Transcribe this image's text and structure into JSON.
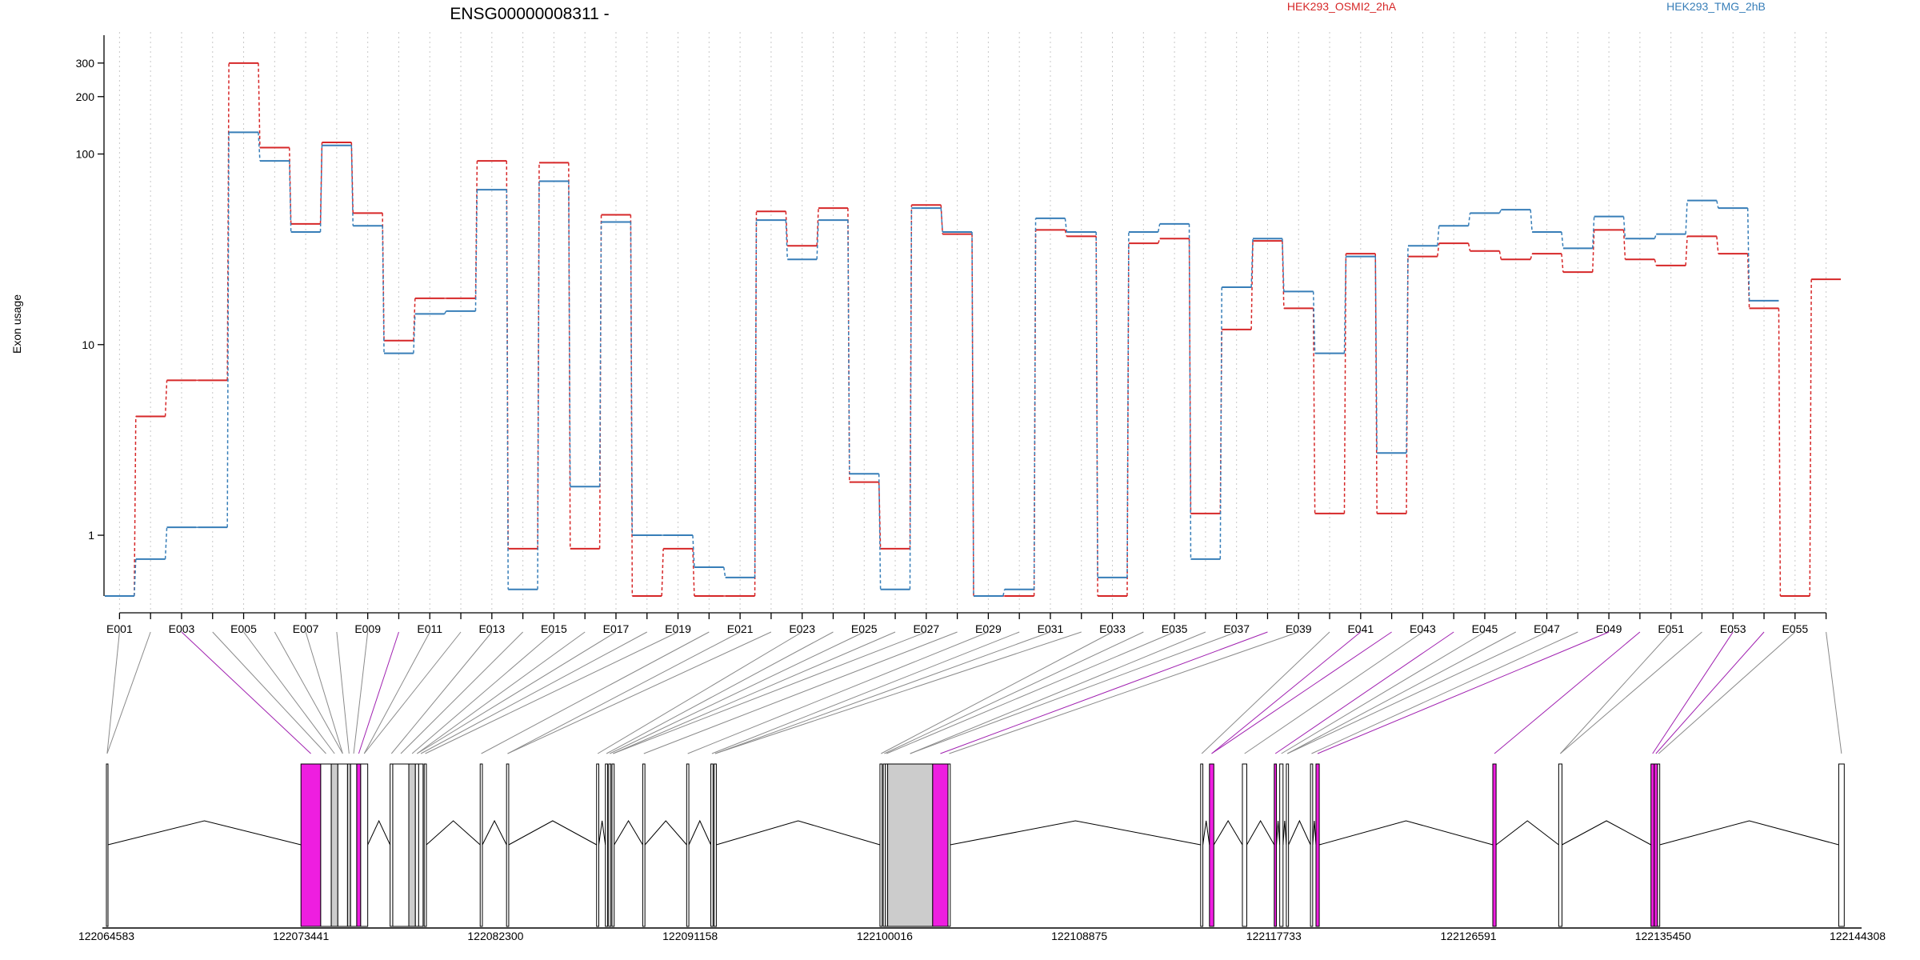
{
  "chart_data": {
    "type": "line",
    "title": "ENSG00000008311 -",
    "ylabel": "Exon usage",
    "yscale": "log",
    "ylim": [
      0.48,
      420
    ],
    "yticks": [
      1,
      10,
      100,
      200,
      300
    ],
    "grid": "vertical-dotted",
    "legend_position": "top-right",
    "series_colors": [
      "#d62728",
      "#377eb8"
    ],
    "exons": [
      "E001",
      "E002",
      "E003",
      "E004",
      "E005",
      "E006",
      "E007",
      "E008",
      "E009",
      "E010",
      "E011",
      "E012",
      "E013",
      "E014",
      "E015",
      "E016",
      "E017",
      "E018",
      "E019",
      "E020",
      "E021",
      "E022",
      "E023",
      "E024",
      "E025",
      "E026",
      "E027",
      "E028",
      "E029",
      "E030",
      "E031",
      "E032",
      "E033",
      "E034",
      "E035",
      "E036",
      "E037",
      "E038",
      "E039",
      "E040",
      "E041",
      "E042",
      "E043",
      "E044",
      "E045",
      "E046",
      "E047",
      "E048",
      "E049",
      "E050",
      "E051",
      "E052",
      "E053",
      "E054",
      "E055",
      "E056"
    ],
    "tick_labels": [
      "E001",
      "E003",
      "E005",
      "E007",
      "E009",
      "E011",
      "E013",
      "E015",
      "E017",
      "E019",
      "E021",
      "E023",
      "E025",
      "E027",
      "E029",
      "E031",
      "E033",
      "E035",
      "E037",
      "E039",
      "E041",
      "E043",
      "E045",
      "E047",
      "E049",
      "E051",
      "E053",
      "E055"
    ],
    "series": [
      {
        "name": "HEK293_OSMI2_2hA",
        "color": "#d62728",
        "values": [
          0.48,
          4.2,
          6.5,
          6.5,
          300,
          108,
          43,
          115,
          49,
          10.5,
          17.5,
          17.5,
          92,
          0.85,
          90,
          0.85,
          48,
          0.48,
          0.85,
          0.48,
          0.48,
          50,
          33,
          52,
          1.9,
          0.85,
          54,
          38,
          0.48,
          0.48,
          40,
          37,
          0.48,
          34,
          36,
          1.3,
          12,
          35,
          15.5,
          1.3,
          30,
          1.3,
          29,
          34,
          31,
          28,
          30,
          24,
          40,
          28,
          26,
          37,
          30,
          15.5,
          0.48,
          22
        ]
      },
      {
        "name": "HEK293_TMG_2hB",
        "color": "#377eb8",
        "values": [
          0.48,
          0.75,
          1.1,
          1.1,
          130,
          92,
          39,
          111,
          42,
          9,
          14.5,
          15,
          65,
          0.52,
          72,
          1.8,
          44,
          1.0,
          1.0,
          0.68,
          0.6,
          45,
          28,
          45,
          2.1,
          0.52,
          52,
          39,
          0.48,
          0.52,
          46,
          39,
          0.6,
          39,
          43,
          0.75,
          20,
          36,
          19,
          9,
          29,
          2.7,
          33,
          42,
          49,
          51,
          39,
          32,
          47,
          36,
          38,
          57,
          52,
          17,
          null,
          null
        ]
      }
    ],
    "gene_model": {
      "coord_ticks": [
        "122064583",
        "122073441",
        "122082300",
        "122091158",
        "122100016",
        "122108875",
        "122117733",
        "122126591",
        "122135450",
        "122144308"
      ],
      "exon_colors": {
        "normal": "#ffffff",
        "significant": "#ee1ee0",
        "fill": "#cccccc"
      }
    }
  }
}
